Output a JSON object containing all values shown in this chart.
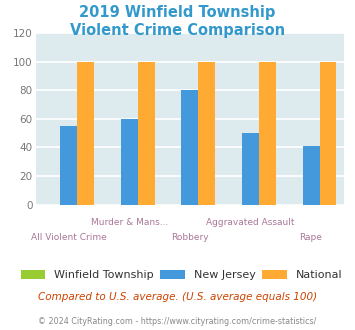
{
  "title": "2019 Winfield Township\nViolent Crime Comparison",
  "title_color": "#3399cc",
  "groups": [
    "All Violent Crime",
    "Murder & Mans...",
    "Robbery",
    "Aggravated Assault",
    "Rape"
  ],
  "group_labels_top": [
    "",
    "Murder & Mans...",
    "",
    "Aggravated Assault",
    ""
  ],
  "group_labels_bot": [
    "All Violent Crime",
    "",
    "Robbery",
    "",
    "Rape"
  ],
  "series": {
    "Winfield Township": {
      "color": "#99cc33",
      "values": [
        0,
        0,
        0,
        0,
        0
      ]
    },
    "New Jersey": {
      "color": "#4499dd",
      "values": [
        55,
        60,
        80,
        50,
        41
      ]
    },
    "National": {
      "color": "#ffaa33",
      "values": [
        100,
        100,
        100,
        100,
        100
      ]
    }
  },
  "ylim": [
    0,
    120
  ],
  "yticks": [
    0,
    20,
    40,
    60,
    80,
    100,
    120
  ],
  "bg_color": "#ddeaee",
  "grid_color": "#ffffff",
  "bar_width": 0.28,
  "footer1": "Compared to U.S. average. (U.S. average equals 100)",
  "footer1_color": "#cc4400",
  "footer2": "© 2024 CityRating.com - https://www.cityrating.com/crime-statistics/",
  "footer2_color": "#888888",
  "label_color": "#aa7799"
}
